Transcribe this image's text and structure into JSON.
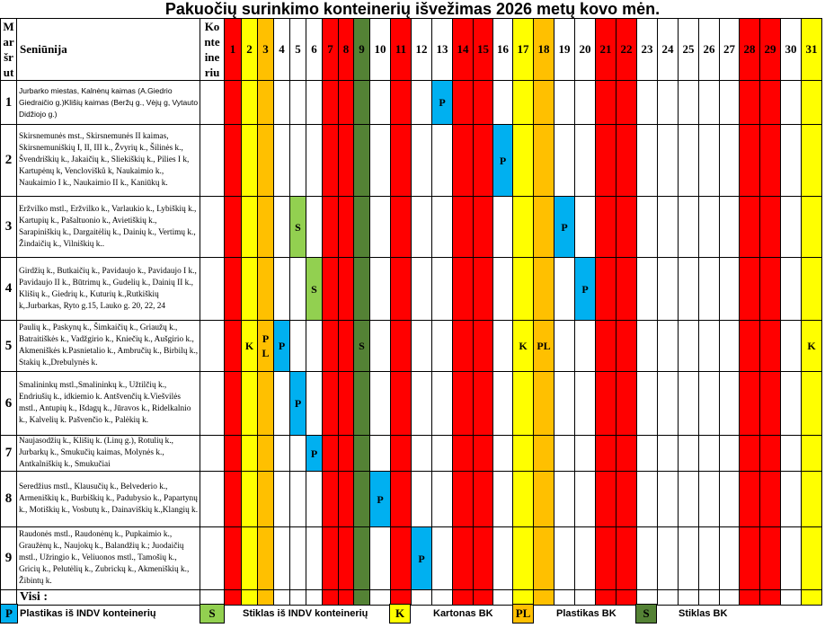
{
  "title": "Pakuočių surinkimo konteinerių išvežimas  2026 metų kovo mėn.",
  "colors": {
    "red": "#ff0000",
    "yellow": "#ffff00",
    "orange": "#ffc000",
    "dark_green": "#548235",
    "light_green": "#92d050",
    "blue": "#00b0f0",
    "white": "#ffffff"
  },
  "header": {
    "route": "M ar šr ut",
    "district": "Seniūnija",
    "containers": "Ko nte ine riu"
  },
  "days": [
    "1",
    "2",
    "3",
    "4",
    "5",
    "6",
    "7",
    "8",
    "9",
    "10",
    "11",
    "12",
    "13",
    "14",
    "15",
    "16",
    "17",
    "18",
    "19",
    "20",
    "21",
    "22",
    "23",
    "24",
    "25",
    "26",
    "27",
    "28",
    "29",
    "30",
    "31"
  ],
  "day_colors": [
    "red",
    "yellow",
    "orange",
    "white",
    "white",
    "white",
    "red",
    "red",
    "dark_green",
    "white",
    "red",
    "white",
    "white",
    "red",
    "red",
    "white",
    "yellow",
    "orange",
    "white",
    "white",
    "red",
    "red",
    "white",
    "white",
    "white",
    "white",
    "white",
    "red",
    "red",
    "white",
    "yellow"
  ],
  "rows": [
    {
      "route": "1",
      "text": "Jurbarko miestas, Kalnėnų kaimas (A.Giedrio Giedraičio g.)Klišių kaimas (Beržų g., Vėjų g, Vytauto Didžiojo g.)",
      "marks": [
        {
          "day": 13,
          "label": "P",
          "color": "blue"
        }
      ]
    },
    {
      "route": "2",
      "text": "Skirsnemunės mst., Skirsnemunės II kaimas, Skirsnemuniškių I, II, III k., Žvyrių k., Šilinės k., Švendriškių k., Jakaičių k., Sliekiškių k., Pilies I k, Kartupėnų k, Venclovišků k, Naukaimio k., Naukaimio I k., Naukaimio II k., Kaniūkų k.",
      "marks": [
        {
          "day": 16,
          "label": "P",
          "color": "blue"
        }
      ]
    },
    {
      "route": "3",
      "text": "Eržvilko mstl., Eržvilko k., Varlaukio k., Lybiškių k., Kartupių k., Pašaltuonio k., Avietiškių k., Sarapiniškių k., Dargaitėlių k., Dainių k., Vertimų k., Žindaičių k., Vilniškių k..",
      "marks": [
        {
          "day": 5,
          "label": "S",
          "color": "light_green"
        },
        {
          "day": 19,
          "label": "P",
          "color": "blue"
        }
      ]
    },
    {
      "route": "4",
      "text": "Girdžių k., Butkaičių k., Pavidaujo k., Pavidaujo I k., Pavidaujo II k.,  Būtrimų k., Gudelių k., Dainių II k., Klišių k., Giedrių k., Kuturių k.,Rutkiškių k,.Jurbarkas, Ryto g.15, Lauko g. 20, 22, 24",
      "marks": [
        {
          "day": 6,
          "label": "S",
          "color": "light_green"
        },
        {
          "day": 20,
          "label": "P",
          "color": "blue"
        }
      ]
    },
    {
      "route": "5",
      "text": "Paulių k., Paskynų k., Šimkaičių k., Griaužų k., Batraitiškės k., Vadžgirio k., Kniečių k., Aušgirio k., Akmeniškės k.Pasnietalio k., Ambručių k., Birbilų k., Stakių k.,Drebulynės k.",
      "marks": [
        {
          "day": 2,
          "label": "K"
        },
        {
          "day": 3,
          "label": "P L"
        },
        {
          "day": 4,
          "label": "P",
          "color": "blue"
        },
        {
          "day": 9,
          "label": "S"
        },
        {
          "day": 17,
          "label": "K"
        },
        {
          "day": 18,
          "label": "PL"
        },
        {
          "day": 31,
          "label": "K"
        }
      ]
    },
    {
      "route": "6",
      "text": "Smalininkų mstl.,Smalininkų k., Užtilčių k., Endriušių k., idkiemio k. Antšvenčių k.Viešvilės mstl., Antupių k., Išdagų k., Jūravos k., Ridelkalnio k., Kalvelių k. Pašvenčio k., Palėkių k.",
      "marks": [
        {
          "day": 5,
          "label": "P",
          "color": "blue"
        }
      ]
    },
    {
      "route": "7",
      "text": "Naujasodžių k., Klišių k. (Linų g.),  Rotulių k., Jurbarkų k., Smukučių kaimas, Molynės k., Antkalniškių k., Smukučiai",
      "marks": [
        {
          "day": 6,
          "label": "P",
          "color": "blue"
        }
      ]
    },
    {
      "route": "8",
      "text": "Seredžius mstl., Klausučių k., Belvederio k., Armeniškių k., Burbiškių k., Padubysio k., Papartynų k., Motiškių k., Vosbutų k., Dainaviškių k.,Klangių k.",
      "marks": [
        {
          "day": 10,
          "label": "P",
          "color": "blue"
        }
      ]
    },
    {
      "route": "9",
      "text": "Raudonės mstl., Raudonėnų k., Pupkaimio k., Graužėnų k., Naujokų k., Balandžių k.; Juodaičių mstl., Užringio k., Veliuonos mstl., Tamošių k., Gricių k., Pelutėlių k., Zubrickų k., Akmeniškių k., Žibintų k.",
      "marks": [
        {
          "day": 12,
          "label": "P",
          "color": "blue"
        }
      ]
    }
  ],
  "totals_label": "Visi :",
  "legend": [
    {
      "code": "P",
      "color": "blue",
      "label": "Plastikas iš INDV konteinerių"
    },
    {
      "code": "S",
      "color": "light_green",
      "label": "Stiklas iš INDV konteinerių"
    },
    {
      "code": "K",
      "color": "yellow",
      "label": "Kartonas BK"
    },
    {
      "code": "PL",
      "color": "orange",
      "label": "Plastikas BK"
    },
    {
      "code": "S",
      "color": "dark_green",
      "label": "Stiklas BK"
    }
  ]
}
